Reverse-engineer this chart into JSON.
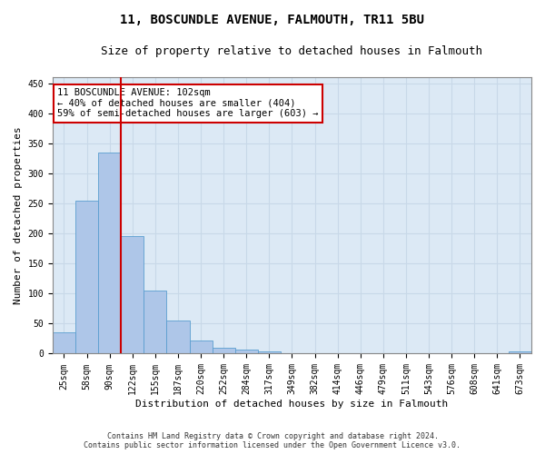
{
  "title": "11, BOSCUNDLE AVENUE, FALMOUTH, TR11 5BU",
  "subtitle": "Size of property relative to detached houses in Falmouth",
  "xlabel": "Distribution of detached houses by size in Falmouth",
  "ylabel": "Number of detached properties",
  "categories": [
    "25sqm",
    "58sqm",
    "90sqm",
    "122sqm",
    "155sqm",
    "187sqm",
    "220sqm",
    "252sqm",
    "284sqm",
    "317sqm",
    "349sqm",
    "382sqm",
    "414sqm",
    "446sqm",
    "479sqm",
    "511sqm",
    "543sqm",
    "576sqm",
    "608sqm",
    "641sqm",
    "673sqm"
  ],
  "values": [
    35,
    255,
    335,
    195,
    105,
    55,
    22,
    10,
    7,
    4,
    1,
    0,
    0,
    1,
    0,
    0,
    0,
    0,
    0,
    0,
    3
  ],
  "bar_color": "#aec6e8",
  "bar_edge_color": "#5a9ecf",
  "grid_color": "#c8d8e8",
  "background_color": "#dce9f5",
  "vline_x": 2.5,
  "vline_color": "#cc0000",
  "annotation_text": "11 BOSCUNDLE AVENUE: 102sqm\n← 40% of detached houses are smaller (404)\n59% of semi-detached houses are larger (603) →",
  "annotation_box_color": "#cc0000",
  "footer_line1": "Contains HM Land Registry data © Crown copyright and database right 2024.",
  "footer_line2": "Contains public sector information licensed under the Open Government Licence v3.0.",
  "ylim": [
    0,
    460
  ],
  "yticks": [
    0,
    50,
    100,
    150,
    200,
    250,
    300,
    350,
    400,
    450
  ],
  "title_fontsize": 10,
  "subtitle_fontsize": 9,
  "ylabel_fontsize": 8,
  "xlabel_fontsize": 8,
  "tick_fontsize": 7,
  "ann_fontsize": 7.5
}
